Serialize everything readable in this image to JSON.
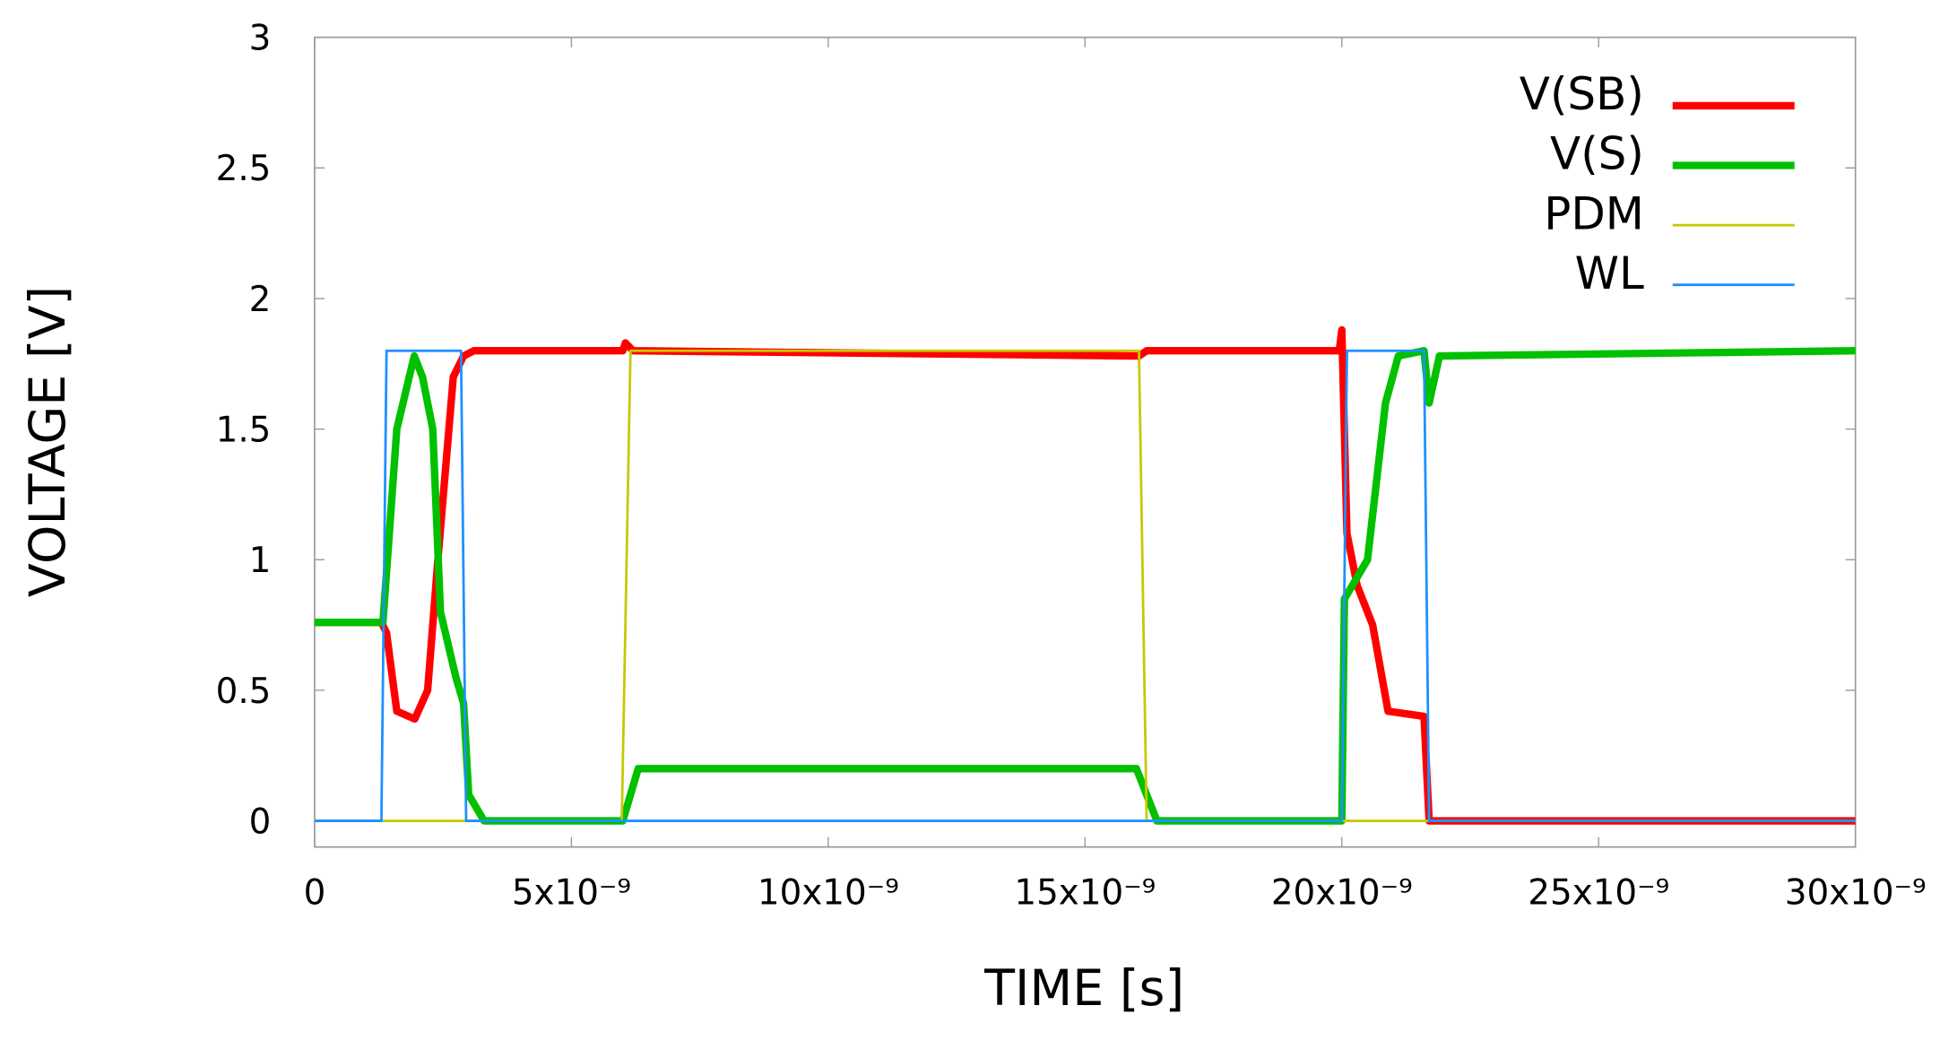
{
  "chart_data": {
    "type": "line",
    "x_label": "TIME [s]",
    "y_label": "VOLTAGE [V]",
    "xlim": [
      0,
      3e-08
    ],
    "ylim": [
      -0.1,
      3
    ],
    "xticks": [
      0,
      {
        "value": 5e-09,
        "label": "5x10⁻⁹"
      },
      {
        "value": 1e-08,
        "label": "10x10⁻⁹"
      },
      {
        "value": 1.5e-08,
        "label": "15x10⁻⁹"
      },
      {
        "value": 2e-08,
        "label": "20x10⁻⁹"
      },
      {
        "value": 2.5e-08,
        "label": "25x10⁻⁹"
      },
      {
        "value": 3e-08,
        "label": "30x10⁻⁹"
      }
    ],
    "yticks": [
      0,
      0.5,
      1,
      1.5,
      2,
      2.5,
      3
    ],
    "legend": "upper right",
    "series": [
      {
        "name": "V(SB)",
        "color": "#ff0000",
        "width": 6,
        "x": [
          0,
          1.3e-09,
          1.4e-09,
          1.6e-09,
          1.95e-09,
          2.2e-09,
          2.4e-09,
          2.7e-09,
          2.9e-09,
          3.1e-09,
          6e-09,
          6.05e-09,
          6.2e-09,
          1.605e-08,
          1.62e-08,
          1.995e-08,
          2e-08,
          2.01e-08,
          2.03e-08,
          2.06e-08,
          2.09e-08,
          2.16e-08,
          2.17e-08,
          3e-08
        ],
        "values": [
          0.76,
          0.76,
          0.72,
          0.42,
          0.39,
          0.5,
          1.0,
          1.7,
          1.78,
          1.8,
          1.8,
          1.83,
          1.8,
          1.78,
          1.8,
          1.8,
          1.88,
          1.1,
          0.9,
          0.75,
          0.42,
          0.4,
          0,
          0
        ]
      },
      {
        "name": "V(S)",
        "color": "#00c000",
        "width": 6,
        "x": [
          0,
          1.33e-09,
          1.6e-09,
          1.94e-09,
          2.1e-09,
          2.3e-09,
          2.45e-09,
          2.75e-09,
          2.9e-09,
          3e-09,
          3.3e-09,
          6e-09,
          6.3e-09,
          1.6e-08,
          1.64e-08,
          2e-08,
          2.005e-08,
          2.05e-08,
          2.085e-08,
          2.11e-08,
          2.16e-08,
          2.17e-08,
          2.19e-08,
          3e-08
        ],
        "values": [
          0.76,
          0.76,
          1.5,
          1.78,
          1.7,
          1.5,
          0.8,
          0.55,
          0.45,
          0.1,
          0,
          0,
          0.2,
          0.2,
          0,
          0,
          0.85,
          1.0,
          1.6,
          1.78,
          1.8,
          1.6,
          1.78,
          1.8
        ]
      },
      {
        "name": "PDM",
        "color": "#c8c800",
        "width": 2,
        "x": [
          0,
          5.98e-09,
          6.15e-09,
          1.605e-08,
          1.62e-08,
          3e-08
        ],
        "values": [
          0,
          0,
          1.8,
          1.8,
          0,
          0
        ]
      },
      {
        "name": "WL",
        "color": "#1e90ff",
        "width": 2,
        "x": [
          0,
          1.3e-09,
          1.4e-09,
          2.85e-09,
          2.95e-09,
          2e-08,
          2.01e-08,
          2.16e-08,
          2.17e-08,
          3e-08
        ],
        "values": [
          0,
          0,
          1.8,
          1.8,
          0,
          0,
          1.8,
          1.8,
          0,
          0
        ]
      }
    ]
  }
}
